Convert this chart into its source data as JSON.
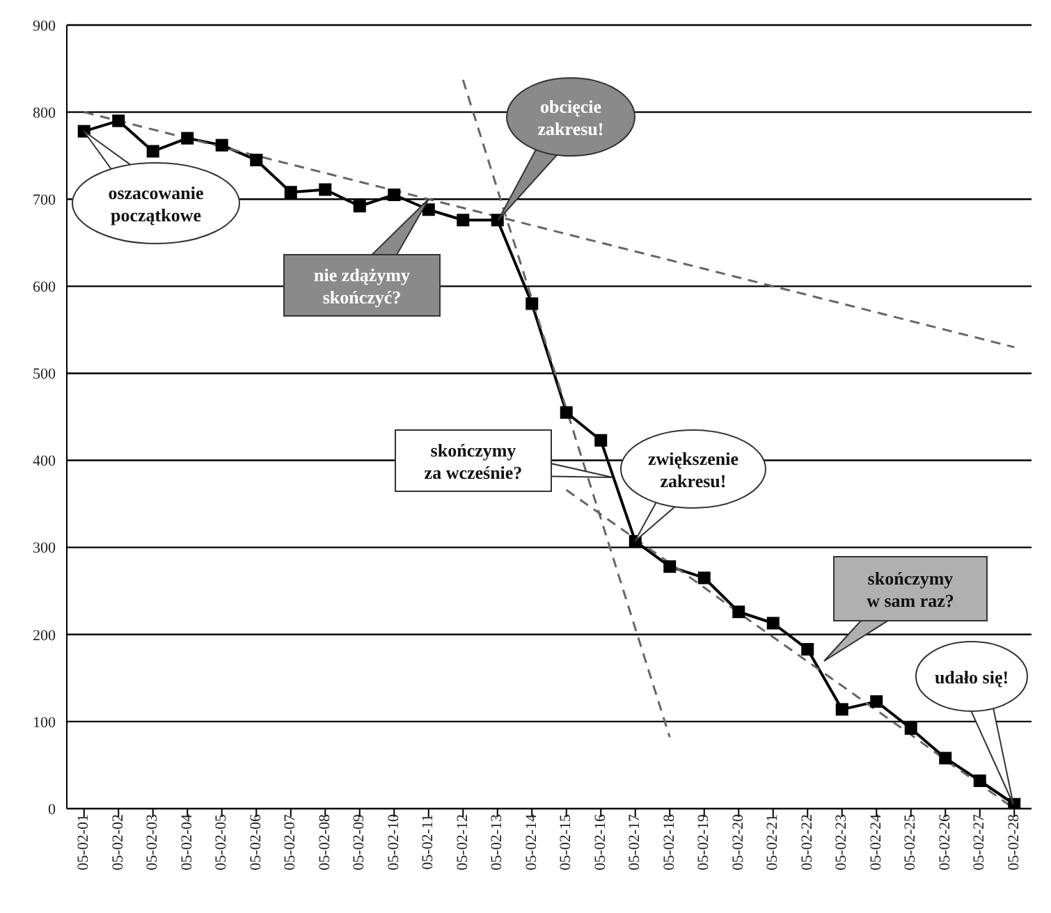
{
  "chart_data": {
    "type": "line",
    "categories": [
      "05-02-01",
      "05-02-02",
      "05-02-03",
      "05-02-04",
      "05-02-05",
      "05-02-06",
      "05-02-07",
      "05-02-08",
      "05-02-09",
      "05-02-10",
      "05-02-11",
      "05-02-12",
      "05-02-13",
      "05-02-14",
      "05-02-15",
      "05-02-16",
      "05-02-17",
      "05-02-18",
      "05-02-19",
      "05-02-20",
      "05-02-21",
      "05-02-22",
      "05-02-23",
      "05-02-24",
      "05-02-25",
      "05-02-26",
      "05-02-27",
      "05-02-28"
    ],
    "series": [
      {
        "color": "#000000",
        "marker": "square",
        "line_style": "solid",
        "values": [
          778,
          790,
          755,
          770,
          762,
          745,
          708,
          711,
          692,
          705,
          688,
          676,
          676,
          580,
          455,
          423,
          307,
          278,
          265,
          226,
          213,
          183,
          114,
          123,
          92,
          58,
          32,
          5
        ]
      },
      {
        "color": "#666666",
        "marker": "none",
        "line_style": "dashed",
        "values": [
          800,
          790,
          780,
          770,
          760,
          750,
          740,
          730,
          720,
          710,
          700,
          690,
          680,
          670,
          660,
          650,
          640,
          630,
          620,
          610,
          600,
          590,
          580,
          570,
          560,
          550,
          540,
          530
        ]
      },
      {
        "color": "#666666",
        "marker": "none",
        "line_style": "dashed",
        "values": [
          null,
          null,
          null,
          null,
          null,
          null,
          null,
          null,
          null,
          null,
          null,
          837,
          711,
          585,
          459,
          333,
          207,
          82,
          null,
          null,
          null,
          null,
          null,
          null,
          null,
          null,
          null,
          null
        ]
      },
      {
        "color": "#666666",
        "marker": "none",
        "line_style": "dashed",
        "values": [
          null,
          null,
          null,
          null,
          null,
          null,
          null,
          null,
          null,
          null,
          null,
          null,
          null,
          null,
          366,
          338,
          310,
          282,
          254,
          225,
          197,
          169,
          141,
          113,
          85,
          56,
          28,
          0
        ]
      }
    ],
    "ylim": [
      0,
      900
    ],
    "yticks": [
      0,
      100,
      200,
      300,
      400,
      500,
      600,
      700,
      800,
      900
    ],
    "grid": "y",
    "legend": false,
    "annotations": [
      "oszacowanie początkowe",
      "nie zdążymy skończyć?",
      "obcięcie zakresu!",
      "skończymy za wcześnie?",
      "zwiększenie zakresu!",
      "skończymy w sam raz?",
      "udało się!"
    ]
  }
}
